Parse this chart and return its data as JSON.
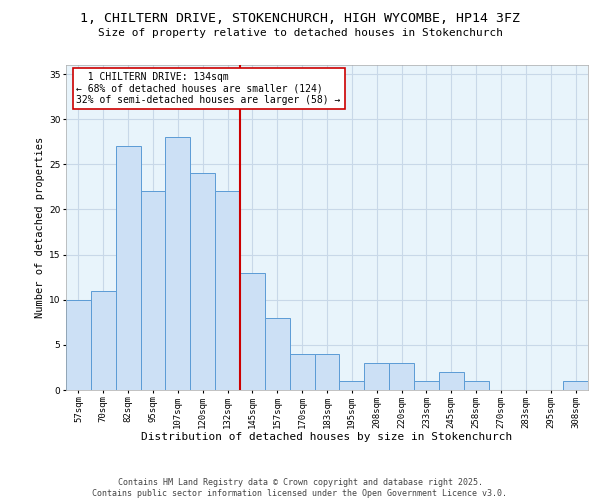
{
  "title": "1, CHILTERN DRIVE, STOKENCHURCH, HIGH WYCOMBE, HP14 3FZ",
  "subtitle": "Size of property relative to detached houses in Stokenchurch",
  "xlabel": "Distribution of detached houses by size in Stokenchurch",
  "ylabel": "Number of detached properties",
  "categories": [
    "57sqm",
    "70sqm",
    "82sqm",
    "95sqm",
    "107sqm",
    "120sqm",
    "132sqm",
    "145sqm",
    "157sqm",
    "170sqm",
    "183sqm",
    "195sqm",
    "208sqm",
    "220sqm",
    "233sqm",
    "245sqm",
    "258sqm",
    "270sqm",
    "283sqm",
    "295sqm",
    "308sqm"
  ],
  "values": [
    10,
    11,
    27,
    22,
    28,
    24,
    22,
    13,
    8,
    4,
    4,
    1,
    3,
    3,
    1,
    2,
    1,
    0,
    0,
    0,
    1
  ],
  "bar_color": "#cce0f5",
  "bar_edge_color": "#5b9bd5",
  "vline_x": 6.5,
  "vline_color": "#cc0000",
  "annotation_text": "  1 CHILTERN DRIVE: 134sqm  \n← 68% of detached houses are smaller (124)\n32% of semi-detached houses are larger (58) →",
  "annotation_box_color": "#ffffff",
  "annotation_box_edge_color": "#cc0000",
  "ylim": [
    0,
    36
  ],
  "yticks": [
    0,
    5,
    10,
    15,
    20,
    25,
    30,
    35
  ],
  "grid_color": "#c8d8e8",
  "bg_color": "#e8f4fb",
  "footer": "Contains HM Land Registry data © Crown copyright and database right 2025.\nContains public sector information licensed under the Open Government Licence v3.0.",
  "title_fontsize": 9.5,
  "subtitle_fontsize": 8,
  "xlabel_fontsize": 8,
  "ylabel_fontsize": 7.5,
  "tick_fontsize": 6.5,
  "annotation_fontsize": 7,
  "footer_fontsize": 6
}
